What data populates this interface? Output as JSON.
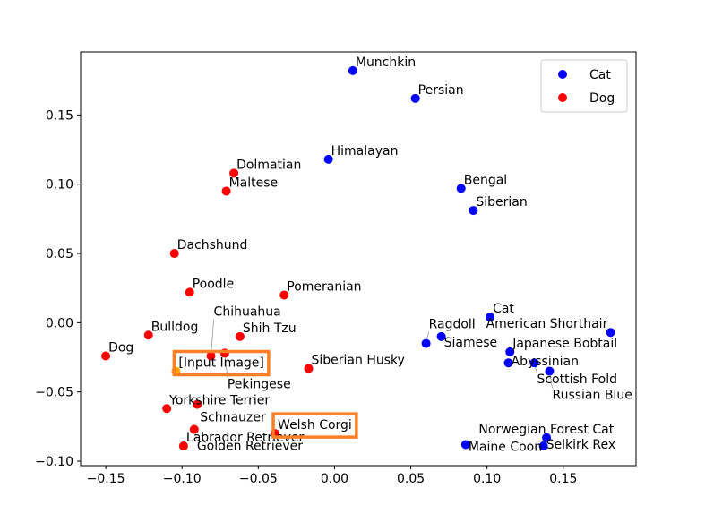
{
  "chart_data": {
    "type": "scatter",
    "title": "",
    "xlabel": "",
    "ylabel": "",
    "xlim": [
      -0.1665,
      0.1977
    ],
    "ylim": [
      -0.1032,
      0.1955
    ],
    "xticks": [
      -0.15,
      -0.1,
      -0.05,
      0.0,
      0.05,
      0.1,
      0.15
    ],
    "xtick_labels": [
      "−0.15",
      "−0.10",
      "−0.05",
      "0.00",
      "0.05",
      "0.10",
      "0.15"
    ],
    "yticks": [
      -0.1,
      -0.05,
      0.0,
      0.05,
      0.1,
      0.15
    ],
    "ytick_labels": [
      "−0.10",
      "−0.05",
      "0.00",
      "0.05",
      "0.10",
      "0.15"
    ],
    "grid": false,
    "legend": {
      "placement": "top-right",
      "entries": [
        "Cat",
        "Dog"
      ]
    },
    "series": [
      {
        "name": "Cat",
        "color": "#0000ff",
        "points": [
          {
            "label": "Munchkin",
            "x": 0.012,
            "y": 0.182
          },
          {
            "label": "Persian",
            "x": 0.053,
            "y": 0.162
          },
          {
            "label": "Himalayan",
            "x": -0.004,
            "y": 0.118
          },
          {
            "label": "Bengal",
            "x": 0.083,
            "y": 0.097
          },
          {
            "label": "Siberian",
            "x": 0.091,
            "y": 0.081
          },
          {
            "label": "Cat",
            "x": 0.102,
            "y": 0.004
          },
          {
            "label": "American Shorthair",
            "x": 0.181,
            "y": -0.007
          },
          {
            "label": "Siamese",
            "x": 0.07,
            "y": -0.01
          },
          {
            "label": "Ragdoll",
            "x": 0.06,
            "y": -0.015
          },
          {
            "label": "Japanese Bobtail",
            "x": 0.115,
            "y": -0.021
          },
          {
            "label": "Abyssinian",
            "x": 0.114,
            "y": -0.029
          },
          {
            "label": "Scottish Fold",
            "x": 0.131,
            "y": -0.029
          },
          {
            "label": "Russian Blue",
            "x": 0.141,
            "y": -0.035
          },
          {
            "label": "Norwegian Forest Cat",
            "x": 0.139,
            "y": -0.083
          },
          {
            "label": "Selkirk Rex",
            "x": 0.137,
            "y": -0.089
          },
          {
            "label": "Maine Coon",
            "x": 0.086,
            "y": -0.088
          }
        ]
      },
      {
        "name": "Dog",
        "color": "#ff0000",
        "points": [
          {
            "label": "Dolmatian",
            "x": -0.066,
            "y": 0.108
          },
          {
            "label": "Maltese",
            "x": -0.071,
            "y": 0.095
          },
          {
            "label": "Dachshund",
            "x": -0.105,
            "y": 0.05
          },
          {
            "label": "Poodle",
            "x": -0.095,
            "y": 0.022
          },
          {
            "label": "Pomeranian",
            "x": -0.033,
            "y": 0.02
          },
          {
            "label": "Bulldog",
            "x": -0.122,
            "y": -0.009
          },
          {
            "label": "Shih Tzu",
            "x": -0.062,
            "y": -0.01
          },
          {
            "label": "Dog",
            "x": -0.15,
            "y": -0.024
          },
          {
            "label": "Chihuahua",
            "x": -0.081,
            "y": -0.024
          },
          {
            "label": "Pekingese",
            "x": -0.072,
            "y": -0.022
          },
          {
            "label": "Siberian Husky",
            "x": -0.017,
            "y": -0.033
          },
          {
            "label": "Yorkshire Terrier",
            "x": -0.11,
            "y": -0.062
          },
          {
            "label": "Schnauzer",
            "x": -0.09,
            "y": -0.059
          },
          {
            "label": "Golden Retriever",
            "x": -0.092,
            "y": -0.077
          },
          {
            "label": "Welsh Corgi",
            "x": -0.039,
            "y": -0.08
          },
          {
            "label": "Labrador Retriever",
            "x": -0.099,
            "y": -0.089
          }
        ]
      }
    ],
    "extra_points": [
      {
        "label": "[Input Image]",
        "x": -0.104,
        "y": -0.035,
        "color": "#ffa500"
      }
    ],
    "highlights": [
      {
        "target": "[Input Image]",
        "color": "#ff7f27"
      },
      {
        "target": "Welsh Corgi",
        "color": "#ff7f27"
      }
    ]
  }
}
